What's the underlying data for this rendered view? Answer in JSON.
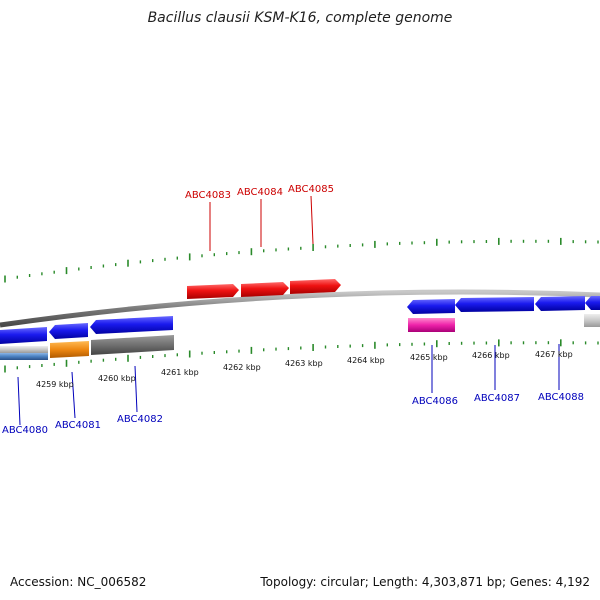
{
  "title": "Bacillus clausii KSM-K16, complete genome",
  "accession": "Accession: NC_006582",
  "topology": "Topology: circular; Length: 4,303,871 bp; Genes: 4,192",
  "colors": {
    "forward_gene": "#ee1111",
    "reverse_gene": "#1a1aee",
    "orange_feature": "#ee8811",
    "gray_feature": "#707070",
    "light_gray_feature": "#c8c8c8",
    "steel_blue_feature": "#4a80c0",
    "magenta_feature": "#ee22aa",
    "tick": "#2a8a2a",
    "forward_label": "#cc0000",
    "reverse_label": "#0000bb",
    "backbone": "#888888"
  },
  "scale_labels": [
    "4259 kbp",
    "4260 kbp",
    "4261 kbp",
    "4262 kbp",
    "4263 kbp",
    "4264 kbp",
    "4265 kbp",
    "4266 kbp",
    "4267 kbp"
  ],
  "forward_genes": [
    {
      "label": "ABC4083",
      "start_kbp": 4261.2,
      "end_kbp": 4262.1
    },
    {
      "label": "ABC4084",
      "start_kbp": 4262.15,
      "end_kbp": 4262.95
    },
    {
      "label": "ABC4085",
      "start_kbp": 4263.0,
      "end_kbp": 4263.85
    }
  ],
  "reverse_genes": [
    {
      "label": "ABC4080",
      "start_kbp": 4258.1,
      "end_kbp": 4258.8
    },
    {
      "label": "ABC4081",
      "start_kbp": 4258.85,
      "end_kbp": 4259.5
    },
    {
      "label": "ABC4082",
      "start_kbp": 4259.55,
      "end_kbp": 4260.9
    },
    {
      "label": "ABC4086",
      "start_kbp": 4265.0,
      "end_kbp": 4265.75
    },
    {
      "label": "ABC4087",
      "start_kbp": 4265.8,
      "end_kbp": 4267.05
    },
    {
      "label": "ABC4088",
      "start_kbp": 4267.1,
      "end_kbp": 4267.9
    }
  ]
}
